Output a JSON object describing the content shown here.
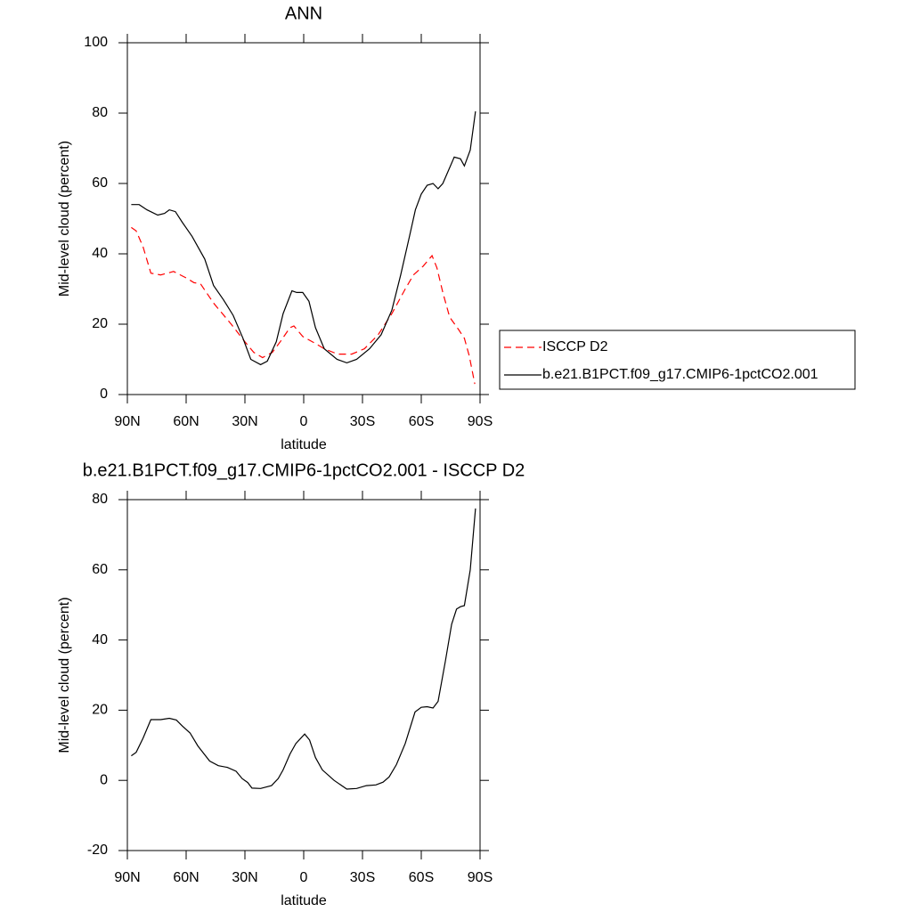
{
  "chart_data": [
    {
      "type": "line",
      "title": "ANN",
      "x_label": "latitude",
      "y_label": "Mid-level cloud (percent)",
      "xlim": [
        90,
        -90
      ],
      "xticks": [
        {
          "value": 90,
          "label": "90N"
        },
        {
          "value": 60,
          "label": "60N"
        },
        {
          "value": 30,
          "label": "30N"
        },
        0,
        {
          "value": -30,
          "label": "30S"
        },
        {
          "value": -60,
          "label": "60S"
        },
        {
          "value": -90,
          "label": "90S"
        }
      ],
      "ylim": [
        0,
        100
      ],
      "yticks": [
        0,
        20,
        40,
        60,
        80,
        100
      ],
      "legend": "outside-right",
      "series": [
        {
          "name": "ISCCP D2",
          "color": "#ff0000",
          "dashed": true,
          "x": [
            88,
            85.5,
            82,
            78,
            73,
            66.4,
            59.5,
            56,
            52.7,
            46,
            37,
            30,
            25.5,
            21,
            16,
            12,
            7,
            5,
            0.5,
            -6,
            -10.5,
            -17.3,
            -24.5,
            -31,
            -38,
            -45,
            -51.8,
            -56,
            -61,
            -65.5,
            -68,
            -71,
            -74.5,
            -79,
            -82,
            -84.5,
            -87.3
          ],
          "values": [
            47.5,
            46.5,
            42,
            34.5,
            34,
            35,
            33,
            31.8,
            31.5,
            26,
            20,
            15,
            12,
            10.5,
            12,
            15,
            19,
            19.5,
            16.5,
            14.5,
            13,
            11.5,
            11.5,
            13,
            17,
            23,
            30,
            34,
            36.5,
            39.5,
            36,
            29,
            22,
            18.5,
            16,
            11,
            3
          ]
        },
        {
          "name": "b.e21.B1PCT.f09_g17.CMIP6-1pctCO2.001",
          "color": "#000000",
          "dashed": false,
          "x": [
            88,
            84,
            80,
            74.5,
            71,
            68.6,
            65.5,
            62,
            57,
            50.5,
            46,
            41,
            36,
            31,
            27,
            22,
            18.6,
            14,
            10.5,
            6,
            3.6,
            0.5,
            -2.7,
            -6,
            -10.5,
            -17,
            -22,
            -27,
            -33.6,
            -39.5,
            -45,
            -49.5,
            -54,
            -57,
            -60,
            -63,
            -66,
            -68.6,
            -71,
            -76.8,
            -80,
            -82,
            -85,
            -87.7
          ],
          "values": [
            54,
            54,
            52.5,
            51,
            51.5,
            52.5,
            52,
            49,
            45,
            38.5,
            31,
            27,
            22.5,
            16,
            10,
            8.5,
            9.5,
            15,
            23,
            29.5,
            29,
            29,
            26.5,
            19,
            13,
            10,
            9,
            10,
            13,
            17,
            24,
            34,
            45,
            52.5,
            57,
            59.5,
            60,
            58.5,
            60,
            67.5,
            67,
            65,
            69.5,
            80.5
          ]
        }
      ]
    },
    {
      "type": "line",
      "title": "b.e21.B1PCT.f09_g17.CMIP6-1pctCO2.001 - ISCCP D2",
      "x_label": "latitude",
      "y_label": "Mid-level cloud (percent)",
      "xlim": [
        90,
        -90
      ],
      "xticks": [
        {
          "value": 90,
          "label": "90N"
        },
        {
          "value": 60,
          "label": "60N"
        },
        {
          "value": 30,
          "label": "30N"
        },
        0,
        {
          "value": -30,
          "label": "30S"
        },
        {
          "value": -60,
          "label": "60S"
        },
        {
          "value": -90,
          "label": "90S"
        }
      ],
      "ylim": [
        -20,
        80
      ],
      "yticks": [
        -20,
        0,
        20,
        40,
        60,
        80
      ],
      "series": [
        {
          "color": "#000000",
          "dashed": false,
          "x": [
            88,
            85.5,
            82,
            78,
            73,
            68.6,
            65,
            62,
            58,
            54,
            48,
            43.6,
            39,
            34.5,
            31.4,
            28.6,
            26.4,
            22,
            16.4,
            13,
            10.5,
            7,
            4,
            -0.5,
            -3,
            -6,
            -9.5,
            -15.5,
            -22,
            -27,
            -32,
            -36.8,
            -40.5,
            -43.6,
            -47.3,
            -51.8,
            -56.8,
            -60,
            -63,
            -66,
            -68.6,
            -72.3,
            -75.5,
            -78,
            -80,
            -82,
            -85,
            -87.7
          ],
          "values": [
            7,
            8,
            12,
            17.3,
            17.3,
            17.7,
            17.2,
            15.5,
            13.5,
            9.8,
            5.5,
            4.2,
            3.7,
            2.6,
            0.5,
            -0.6,
            -2.2,
            -2.3,
            -1.5,
            0.5,
            3,
            7.5,
            10.5,
            13.2,
            11.5,
            6.5,
            3,
            0,
            -2.5,
            -2.3,
            -1.5,
            -1.3,
            -0.5,
            1,
            4.5,
            10.5,
            19.5,
            20.8,
            21,
            20.6,
            22.5,
            34,
            44.5,
            48.8,
            49.5,
            49.8,
            60,
            77.5
          ]
        }
      ]
    }
  ]
}
